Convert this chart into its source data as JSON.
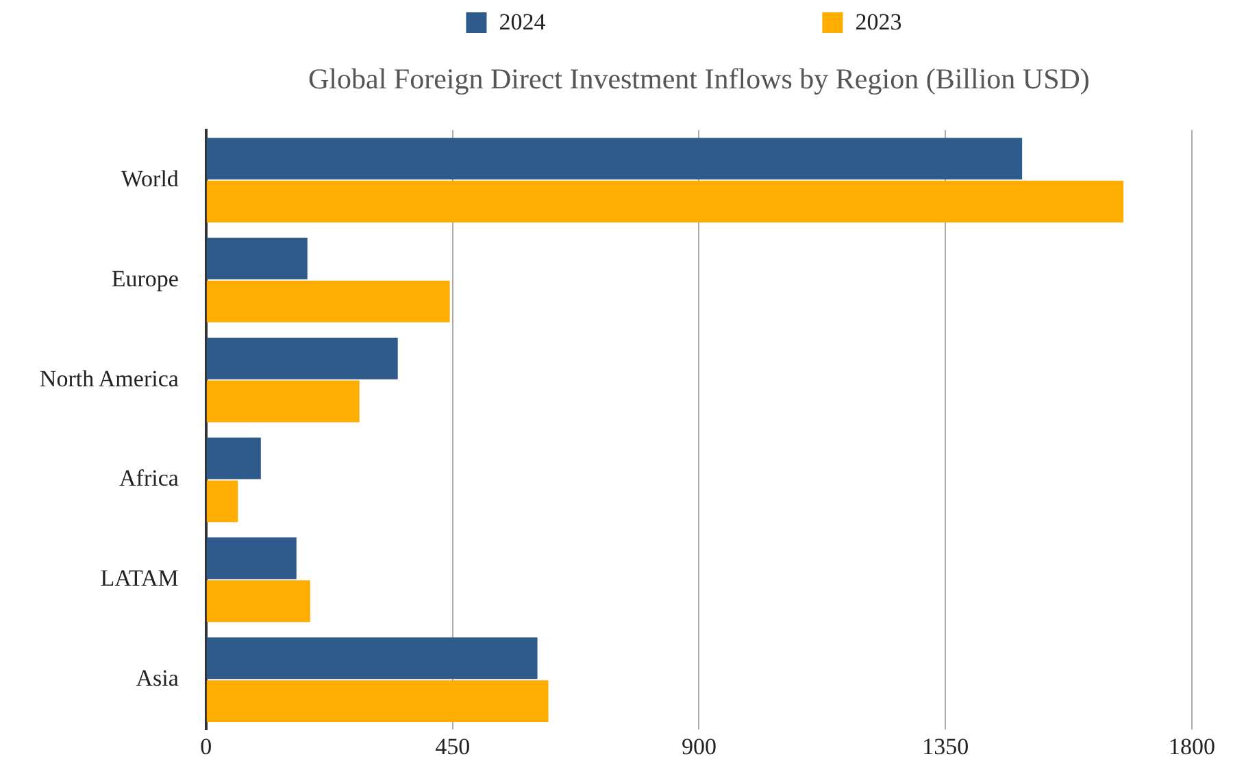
{
  "chart_data": {
    "type": "bar",
    "orientation": "horizontal",
    "title": "Global Foreign Direct Investment Inflows by Region (Billion USD)",
    "categories": [
      "World",
      "Europe",
      "North America",
      "Africa",
      "LATAM",
      "Asia"
    ],
    "series": [
      {
        "name": "2024",
        "color": "#2e5a8c",
        "values": [
          1490,
          185,
          350,
          100,
          165,
          605
        ]
      },
      {
        "name": "2023",
        "color": "#ffad00",
        "values": [
          1675,
          445,
          280,
          58,
          190,
          625
        ]
      }
    ],
    "xlim": [
      0,
      1800
    ],
    "xticks": [
      0,
      450,
      900,
      1350,
      1800
    ],
    "grid": "x",
    "legend": "top"
  }
}
